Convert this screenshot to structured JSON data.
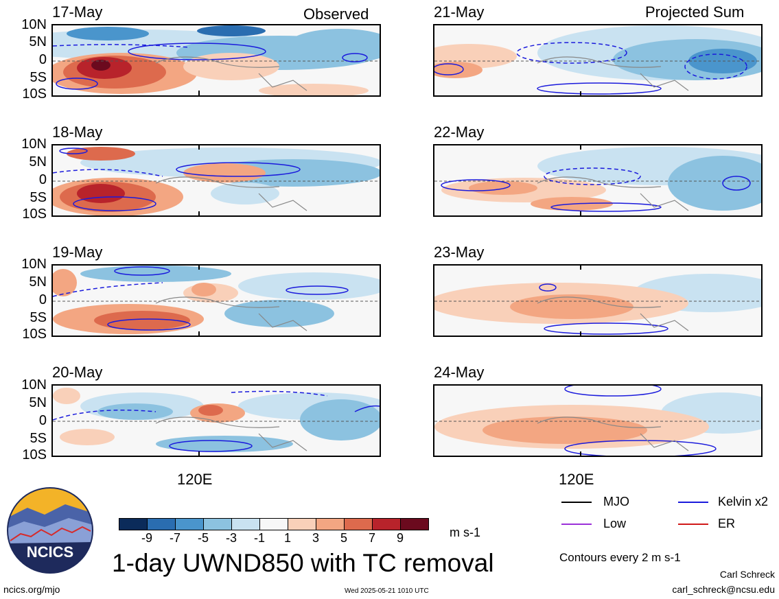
{
  "header": {
    "left_title": "Observed",
    "right_title": "Projected Sum"
  },
  "panels": {
    "left": [
      {
        "date": "17-May"
      },
      {
        "date": "18-May"
      },
      {
        "date": "19-May"
      },
      {
        "date": "20-May"
      }
    ],
    "right": [
      {
        "date": "21-May"
      },
      {
        "date": "22-May"
      },
      {
        "date": "23-May"
      },
      {
        "date": "24-May"
      }
    ]
  },
  "axes": {
    "lat_labels": [
      "10N",
      "5N",
      "0",
      "5S",
      "10S"
    ],
    "lon_label": "120E"
  },
  "colorbar": {
    "labels": [
      "-9",
      "-7",
      "-5",
      "-3",
      "-1",
      "1",
      "3",
      "5",
      "7",
      "9"
    ],
    "colors": [
      "#0b2b5a",
      "#2a6db0",
      "#4a95cc",
      "#8cc2e0",
      "#c9e2f1",
      "#f7f7f7",
      "#f9d0b9",
      "#f3a682",
      "#dd6a4d",
      "#b8232b",
      "#6b0a1e"
    ],
    "units": "m s-1"
  },
  "legend": {
    "items": [
      {
        "label": "MJO",
        "color": "#000000"
      },
      {
        "label": "Kelvin x2",
        "color": "#1a1adc"
      },
      {
        "label": "Low",
        "color": "#9b30d8"
      },
      {
        "label": "ER",
        "color": "#d01818"
      }
    ],
    "contour_note": "Contours every 2 m s-1"
  },
  "footer": {
    "main_title": "1-day UWND850 with TC removal",
    "logo_text": "NCICS",
    "url": "ncics.org/mjo",
    "timestamp": "Wed 2025-05-21 1010 UTC",
    "author": "Carl Schreck",
    "email": "carl_schreck@ncsu.edu"
  }
}
